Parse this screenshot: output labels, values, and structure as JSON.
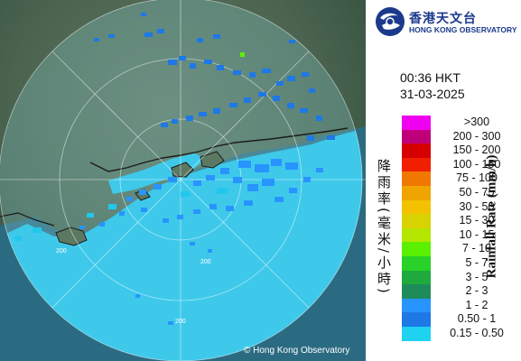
{
  "organization": {
    "name_cn": "香港天文台",
    "name_en": "HONG KONG OBSERVATORY"
  },
  "radar": {
    "time": "00:36 HKT",
    "date": "31-03-2025",
    "copyright": "© Hong Kong Observatory",
    "range_labels": [
      "200",
      "200",
      "200"
    ]
  },
  "legend": {
    "unit_en": "Rainfall Rate (mm/h)",
    "unit_cn": "降雨率(毫米/小時)",
    "items": [
      {
        "label": ">300",
        "color": "#f000f0"
      },
      {
        "label": "200 - 300",
        "color": "#c0007a"
      },
      {
        "label": "150 - 200",
        "color": "#d60000"
      },
      {
        "label": "100 - 150",
        "color": "#f21e00"
      },
      {
        "label": "75 - 100",
        "color": "#f07800"
      },
      {
        "label": "50 - 75",
        "color": "#f0a400"
      },
      {
        "label": "30 - 50",
        "color": "#f2c200"
      },
      {
        "label": "15 - 30",
        "color": "#d8d200"
      },
      {
        "label": "10 - 15",
        "color": "#b4e600"
      },
      {
        "label": "7 - 10",
        "color": "#5af000"
      },
      {
        "label": "5 - 7",
        "color": "#28d228"
      },
      {
        "label": "3 - 5",
        "color": "#1eaa3c"
      },
      {
        "label": "2 - 3",
        "color": "#1e8c5a"
      },
      {
        "label": "1 - 2",
        "color": "#2894ff"
      },
      {
        "label": "0.50 - 1",
        "color": "#1e78e6"
      },
      {
        "label": "0.15 - 0.50",
        "color": "#1ed2f0"
      }
    ]
  }
}
